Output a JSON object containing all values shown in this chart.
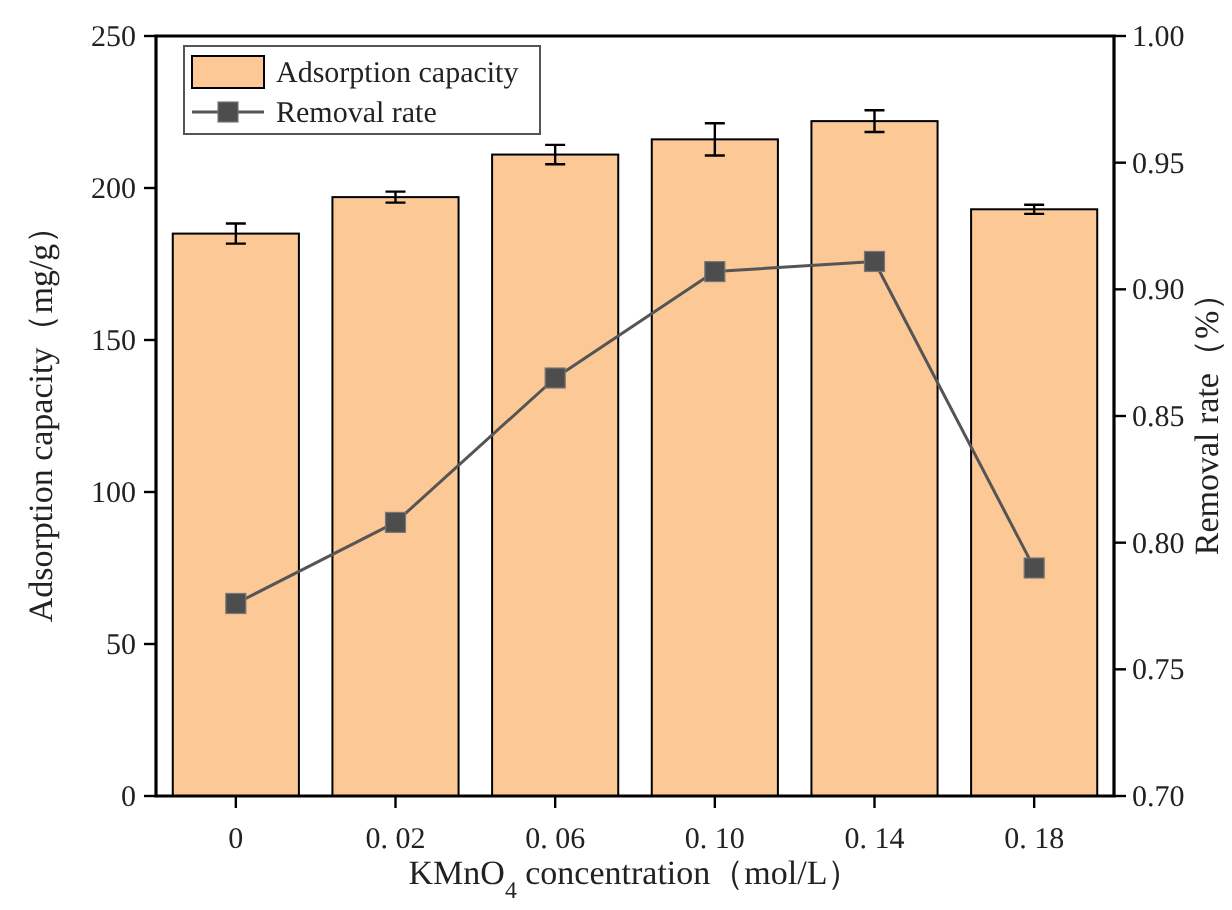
{
  "chart_data": {
    "type": "bar",
    "categories": [
      "0",
      "0. 02",
      "0. 06",
      "0. 10",
      "0. 14",
      "0. 18"
    ],
    "xlabel": "KMnO$_{4}$ concentration（mol/L）",
    "ylabel": "Adsorption capacity（mg/g）",
    "y2label": "Removal rate（%）",
    "ylim": [
      0,
      250
    ],
    "yticks": [
      0,
      50,
      100,
      150,
      200,
      250
    ],
    "y2lim": [
      0.7,
      1.0
    ],
    "y2ticks": [
      {
        "value": 0.7,
        "label": "0.70"
      },
      {
        "value": 0.75,
        "label": "0.75"
      },
      {
        "value": 0.8,
        "label": "0.80"
      },
      {
        "value": 0.85,
        "label": "0.85"
      },
      {
        "value": 0.9,
        "label": "0.90"
      },
      {
        "value": 0.95,
        "label": "0.95"
      },
      {
        "value": 1.0,
        "label": "1.00"
      }
    ],
    "legend": "top left",
    "series": [
      {
        "name": "Adsorption capacity",
        "color": "#fbc896",
        "values": [
          185,
          197,
          211,
          216,
          222,
          193
        ],
        "errors": [
          3.3,
          1.8,
          3.2,
          5.3,
          3.6,
          1.5
        ]
      },
      {
        "name": "Removal rate",
        "type": "line",
        "axis": "y2",
        "color": "#555555",
        "marker": "square",
        "line_style": "solid",
        "values": [
          0.776,
          0.808,
          0.865,
          0.907,
          0.911,
          0.79
        ]
      }
    ]
  }
}
